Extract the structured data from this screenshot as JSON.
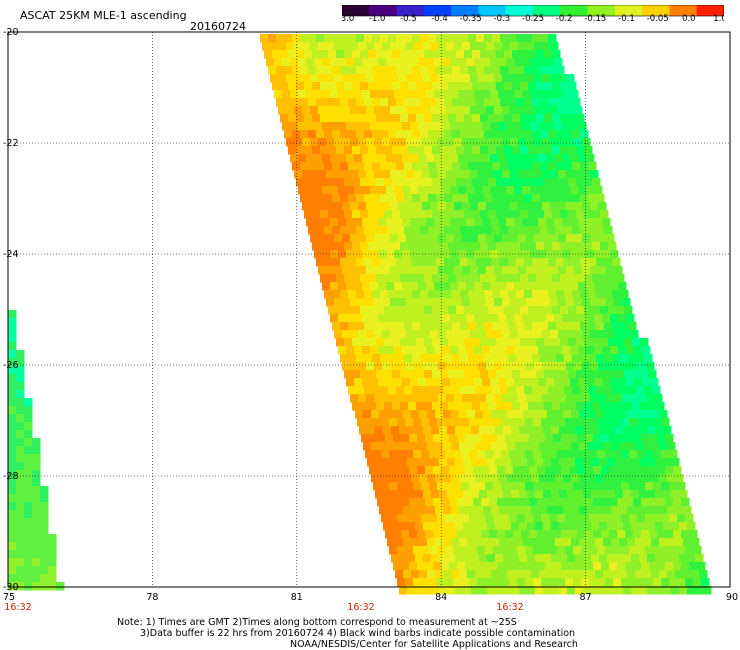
{
  "title": "ASCAT 25KM MLE-1 ascending",
  "date": "20160724",
  "colorbar": {
    "labels": [
      "-3.0",
      "-1.0",
      "-0.5",
      "-0.4",
      "-0.35",
      "-0.3",
      "-0.25",
      "-0.2",
      "-0.15",
      "-0.1",
      "-0.05",
      "0.0",
      "1.0"
    ],
    "colors": [
      "#2a0033",
      "#4b0082",
      "#3a20c8",
      "#0040ff",
      "#0080ff",
      "#00c8ff",
      "#00ffd8",
      "#00ff80",
      "#30f030",
      "#90f020",
      "#e0f020",
      "#ffd000",
      "#ff8000",
      "#ff2000"
    ]
  },
  "axes": {
    "x_ticks": [
      "75",
      "78",
      "81",
      "84",
      "87",
      "90"
    ],
    "y_ticks": [
      "-20",
      "-22",
      "-24",
      "-26",
      "-28",
      "-30"
    ],
    "time_labels": [
      "16:32",
      "16:32",
      "16:32"
    ]
  },
  "notes": {
    "line1": "Note: 1) Times are GMT 2)Times along bottom correspond to measurement at ~25S",
    "line2": "3)Data buffer is 22 hrs from 20160724 4) Black wind barbs indicate possible contamination",
    "line3": "NOAA/NESDIS/Center for Satellite Applications and Research"
  },
  "map": {
    "lon_range": [
      75,
      90
    ],
    "lat_range": [
      -30,
      -20
    ],
    "grid_step_deg": 3,
    "lat_grid_step_deg": 2,
    "swaths": [
      {
        "name": "main swath",
        "dominant_colors": [
          "yellow",
          "orange",
          "green"
        ]
      },
      {
        "name": "left edge swath",
        "dominant_colors": [
          "green",
          "cyan"
        ]
      }
    ]
  }
}
